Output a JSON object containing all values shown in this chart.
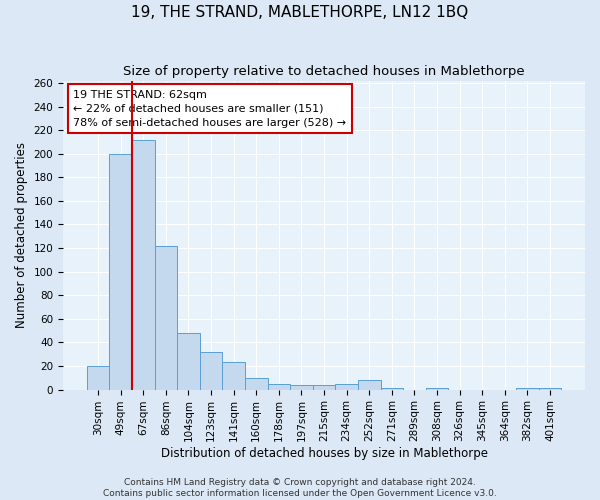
{
  "title": "19, THE STRAND, MABLETHORPE, LN12 1BQ",
  "subtitle": "Size of property relative to detached houses in Mablethorpe",
  "xlabel": "Distribution of detached houses by size in Mablethorpe",
  "ylabel": "Number of detached properties",
  "categories": [
    "30sqm",
    "49sqm",
    "67sqm",
    "86sqm",
    "104sqm",
    "123sqm",
    "141sqm",
    "160sqm",
    "178sqm",
    "197sqm",
    "215sqm",
    "234sqm",
    "252sqm",
    "271sqm",
    "289sqm",
    "308sqm",
    "326sqm",
    "345sqm",
    "364sqm",
    "382sqm",
    "401sqm"
  ],
  "values": [
    20,
    200,
    212,
    122,
    48,
    32,
    23,
    10,
    5,
    4,
    4,
    5,
    8,
    1,
    0,
    1,
    0,
    0,
    0,
    1,
    1
  ],
  "bar_color": "#c5d9ee",
  "bar_edge_color": "#5a9fd4",
  "vline_color": "#cc0000",
  "vline_pos": 1.5,
  "annotation_line1": "19 THE STRAND: 62sqm",
  "annotation_line2": "← 22% of detached houses are smaller (151)",
  "annotation_line3": "78% of semi-detached houses are larger (528) →",
  "annotation_box_color": "#cc0000",
  "ylim": [
    0,
    262
  ],
  "yticks": [
    0,
    20,
    40,
    60,
    80,
    100,
    120,
    140,
    160,
    180,
    200,
    220,
    240,
    260
  ],
  "footer_line1": "Contains HM Land Registry data © Crown copyright and database right 2024.",
  "footer_line2": "Contains public sector information licensed under the Open Government Licence v3.0.",
  "bg_color": "#dce8f5",
  "plot_bg_color": "#e8f2fa",
  "grid_color": "#ffffff",
  "title_fontsize": 11,
  "subtitle_fontsize": 9.5,
  "axis_label_fontsize": 8.5,
  "tick_fontsize": 7.5,
  "annotation_fontsize": 8,
  "footer_fontsize": 6.5
}
